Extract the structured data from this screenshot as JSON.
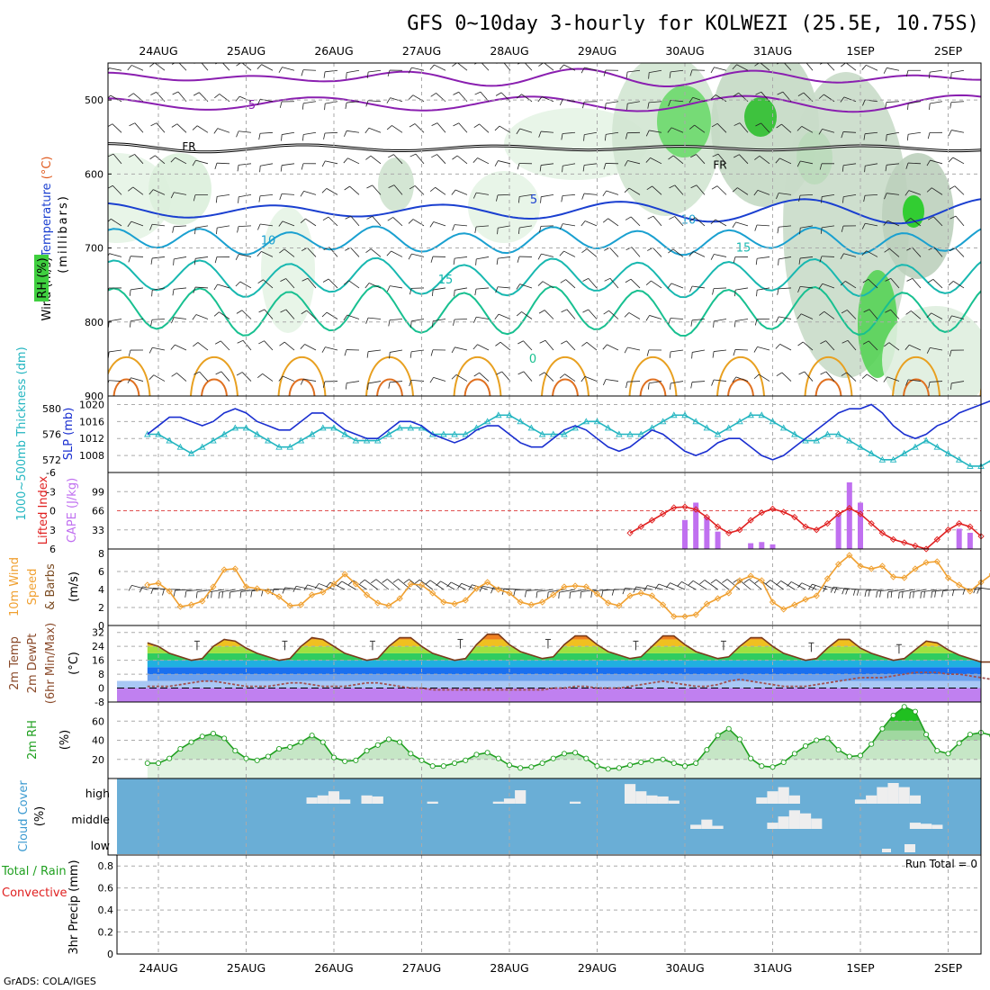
{
  "title": "GFS 0~10day 3-hourly for KOLWEZI (25.5E, 10.75S)",
  "credit": "GrADS: COLA/IGES",
  "dates": [
    "24AUG",
    "25AUG",
    "26AUG",
    "27AUG",
    "28AUG",
    "29AUG",
    "30AUG",
    "31AUG",
    "1SEP",
    "2SEP"
  ],
  "run_total_label": "Run Total = 0",
  "panels": {
    "upper_air": {
      "ylabel_parts": [
        {
          "text": "Wind (m/s)",
          "color": "#000000"
        },
        {
          "text": "Temperature",
          "color": "#1a3fd0"
        },
        {
          "text": " (°C)",
          "color": "#e05a1e"
        }
      ],
      "ylabel2": "(millibars)",
      "rh_label": "RH (%)",
      "y_ticks": [
        "500",
        "600",
        "700",
        "800",
        "900"
      ]
    },
    "thickness_slp": {
      "ylabel_thickness": "1000~500mb Thickness (dm)",
      "ylabel_slp": "SLP (mb)",
      "thickness_ticks": [
        "580",
        "576",
        "572"
      ],
      "slp_ticks": [
        "1020",
        "1016",
        "1012",
        "1008"
      ]
    },
    "cape": {
      "ylabel_li": "Lifted Index",
      "ylabel_cape": "CAPE (J/kg)",
      "li_ticks": [
        "-6",
        "-3",
        "0",
        "3",
        "6"
      ],
      "cape_ticks": [
        "99",
        "66",
        "33"
      ]
    },
    "wind10m": {
      "ylabel_a": "10m Wind",
      "ylabel_b": "Speed",
      "ylabel_c": "& Barbs",
      "ylabel_units": "(m/s)",
      "y_ticks": [
        "8",
        "6",
        "4",
        "2",
        "0"
      ]
    },
    "temp2m": {
      "ylabel_a": "2m Temp",
      "ylabel_b": "2m DewPt",
      "ylabel_c": "(6hr Min/Max)",
      "ylabel_units": "(°C)",
      "y_ticks": [
        "32",
        "24",
        "16",
        "8",
        "0",
        "-8"
      ]
    },
    "rh2m": {
      "ylabel": "2m RH",
      "ylabel_units": "(%)",
      "y_ticks": [
        "60",
        "40",
        "20"
      ]
    },
    "cloud": {
      "ylabel": "Cloud Cover",
      "ylabel_units": "(%)",
      "levels": [
        "high",
        "middle",
        "low"
      ]
    },
    "precip": {
      "ylabel_a": "Total / Rain",
      "ylabel_b": "Convective",
      "ylabel_c": "3hr Precip (mm)",
      "y_ticks": [
        "0.8",
        "0.6",
        "0.4",
        "0.2",
        "0"
      ]
    }
  },
  "colors": {
    "slp": "#1a2fd0",
    "thickness": "#22b5c0",
    "li": "#e02020",
    "cape": "#c070f0",
    "wind_speed": "#f0a030",
    "rh": "#20a020",
    "cloud_bg": "#6aaed6",
    "cloud_bar": "#eeeeee",
    "dewpt": "#a05050"
  },
  "chart_data": [
    {
      "type": "line",
      "name": "sea-level-pressure",
      "ylabel": "SLP (mb)",
      "ylim": [
        1004,
        1022
      ],
      "x_start": "24AUG",
      "x_step_hours": 3,
      "values": [
        1013,
        1015,
        1017,
        1017,
        1016,
        1015,
        1016,
        1018,
        1019,
        1018,
        1016,
        1015,
        1014,
        1014,
        1016,
        1018,
        1018,
        1016,
        1014,
        1013,
        1012,
        1012,
        1014,
        1016,
        1016,
        1015,
        1013,
        1012,
        1011,
        1012,
        1014,
        1015,
        1015,
        1013,
        1011,
        1010,
        1010,
        1012,
        1014,
        1015,
        1014,
        1012,
        1010,
        1009,
        1010,
        1012,
        1014,
        1013,
        1011,
        1009,
        1008,
        1009,
        1011,
        1012,
        1012,
        1010,
        1008,
        1007,
        1008,
        1010,
        1012,
        1014,
        1016,
        1018,
        1019,
        1019,
        1020,
        1018,
        1015,
        1013,
        1012,
        1013,
        1015,
        1016,
        1018,
        1019,
        1020,
        1021
      ]
    },
    {
      "type": "line",
      "name": "thickness-1000-500mb",
      "ylabel": "1000~500mb Thickness (dm)",
      "ylim": [
        570,
        582
      ],
      "x_start": "24AUG",
      "x_step_hours": 3,
      "values": [
        576,
        576,
        575,
        574,
        573,
        574,
        575,
        576,
        577,
        577,
        576,
        575,
        574,
        574,
        575,
        576,
        577,
        577,
        576,
        575,
        575,
        575,
        576,
        577,
        577,
        577,
        576,
        576,
        576,
        576,
        577,
        578,
        579,
        579,
        578,
        577,
        576,
        576,
        576,
        577,
        578,
        578,
        577,
        576,
        576,
        576,
        577,
        578,
        579,
        579,
        578,
        577,
        576,
        577,
        578,
        579,
        579,
        578,
        577,
        576,
        575,
        575,
        576,
        576,
        575,
        574,
        573,
        572,
        572,
        573,
        574,
        575,
        574,
        573,
        572,
        571,
        571,
        572
      ]
    },
    {
      "type": "bar",
      "name": "cape",
      "ylabel": "CAPE (J/kg)",
      "ylim": [
        0,
        132
      ],
      "x_start": "24AUG",
      "x_step_hours": 3,
      "values": [
        0,
        0,
        0,
        0,
        0,
        0,
        0,
        0,
        0,
        0,
        0,
        0,
        0,
        0,
        0,
        0,
        0,
        0,
        0,
        0,
        0,
        0,
        0,
        0,
        0,
        0,
        0,
        0,
        0,
        0,
        0,
        0,
        0,
        0,
        0,
        0,
        0,
        0,
        0,
        0,
        0,
        0,
        0,
        0,
        0,
        0,
        0,
        0,
        0,
        50,
        80,
        55,
        30,
        0,
        0,
        10,
        12,
        8,
        0,
        0,
        0,
        0,
        0,
        60,
        115,
        80,
        0,
        0,
        0,
        0,
        0,
        0,
        0,
        0,
        35,
        28,
        0,
        0
      ]
    },
    {
      "type": "line",
      "name": "lifted-index",
      "ylabel": "Lifted Index",
      "ylim": [
        6,
        -6
      ],
      "x_start": "24AUG",
      "x_step_hours": 3,
      "values": [
        null,
        null,
        null,
        null,
        null,
        null,
        null,
        null,
        null,
        null,
        null,
        null,
        null,
        null,
        null,
        null,
        null,
        null,
        null,
        null,
        null,
        null,
        null,
        null,
        null,
        null,
        null,
        null,
        null,
        null,
        null,
        null,
        null,
        null,
        null,
        null,
        null,
        null,
        null,
        null,
        null,
        null,
        null,
        null,
        3.5,
        2.5,
        1.5,
        0.5,
        -0.5,
        -0.6,
        -0.2,
        1.0,
        2.5,
        3.5,
        3.0,
        1.5,
        0.3,
        -0.3,
        0.2,
        1.0,
        2.5,
        3.0,
        2.0,
        0.5,
        -0.4,
        0.5,
        2.0,
        3.5,
        4.5,
        5.0,
        5.5,
        6.0,
        4.5,
        3.0,
        2.0,
        2.5,
        4.0,
        null
      ]
    },
    {
      "type": "line",
      "name": "wind-speed-10m",
      "ylabel": "10m Wind Speed (m/s)",
      "ylim": [
        0,
        8
      ],
      "x_start": "24AUG",
      "x_step_hours": 3,
      "values": [
        4.5,
        4.7,
        3.8,
        2.1,
        2.3,
        2.7,
        4.3,
        6.2,
        6.3,
        4.3,
        4.1,
        3.8,
        3.2,
        2.2,
        2.3,
        3.4,
        3.7,
        4.6,
        5.7,
        4.6,
        3.4,
        2.5,
        2.2,
        3.0,
        4.6,
        4.5,
        3.6,
        2.6,
        2.4,
        2.8,
        4.1,
        4.8,
        4.0,
        3.6,
        2.6,
        2.3,
        2.6,
        3.4,
        4.3,
        4.4,
        4.3,
        3.5,
        2.5,
        2.2,
        3.3,
        3.6,
        3.3,
        2.3,
        1.0,
        1.0,
        1.2,
        2.4,
        3.0,
        3.6,
        5.0,
        5.5,
        5.0,
        2.6,
        1.8,
        2.3,
        2.9,
        3.3,
        5.2,
        6.8,
        7.8,
        6.6,
        6.3,
        6.6,
        5.4,
        5.3,
        6.3,
        7.0,
        7.1,
        5.3,
        4.5,
        3.8,
        4.8,
        5.7
      ]
    },
    {
      "type": "line",
      "name": "relative-humidity-2m",
      "ylabel": "2m RH (%)",
      "ylim": [
        0,
        80
      ],
      "x_start": "24AUG",
      "x_step_hours": 3,
      "values": [
        16,
        16,
        21,
        31,
        38,
        44,
        47,
        42,
        29,
        21,
        19,
        23,
        31,
        33,
        38,
        45,
        38,
        22,
        18,
        19,
        29,
        35,
        41,
        38,
        26,
        19,
        13,
        13,
        16,
        19,
        25,
        27,
        21,
        14,
        11,
        12,
        16,
        21,
        26,
        27,
        21,
        13,
        10,
        11,
        14,
        17,
        19,
        20,
        16,
        13,
        16,
        30,
        45,
        52,
        41,
        21,
        13,
        12,
        17,
        26,
        34,
        40,
        42,
        30,
        23,
        24,
        36,
        52,
        66,
        75,
        70,
        46,
        29,
        26,
        37,
        46,
        48,
        45
      ]
    },
    {
      "type": "line",
      "name": "temperature-2m",
      "ylabel": "2m Temp (°C)",
      "ylim": [
        -8,
        36
      ],
      "x_start": "24AUG",
      "x_step_hours": 3,
      "values": [
        26,
        24,
        20,
        18,
        16,
        17,
        24,
        28,
        27,
        23,
        20,
        18,
        16,
        17,
        24,
        29,
        28,
        24,
        20,
        18,
        16,
        17,
        24,
        29,
        29,
        24,
        20,
        18,
        16,
        17,
        25,
        31,
        31,
        25,
        21,
        19,
        17,
        18,
        25,
        30,
        30,
        25,
        21,
        19,
        17,
        18,
        24,
        30,
        30,
        25,
        21,
        19,
        17,
        18,
        24,
        29,
        29,
        24,
        20,
        18,
        16,
        17,
        23,
        28,
        28,
        23,
        20,
        18,
        16,
        17,
        22,
        27,
        26,
        22,
        19,
        17,
        15,
        15
      ]
    },
    {
      "type": "line",
      "name": "dewpoint-2m",
      "ylabel": "2m DewPt (°C)",
      "ylim": [
        -8,
        36
      ],
      "x_start": "24AUG",
      "x_step_hours": 3,
      "values": [
        1,
        1,
        1,
        2,
        3,
        4,
        4,
        3,
        2,
        1,
        1,
        1,
        2,
        3,
        3,
        2,
        1,
        1,
        1,
        2,
        3,
        3,
        2,
        1,
        0,
        0,
        -1,
        -1,
        -1,
        -1,
        -1,
        -1,
        -1,
        -1,
        -1,
        -1,
        -1,
        0,
        0,
        1,
        1,
        0,
        0,
        0,
        1,
        2,
        3,
        4,
        3,
        2,
        1,
        1,
        2,
        4,
        5,
        4,
        3,
        2,
        1,
        1,
        1,
        2,
        3,
        4,
        5,
        6,
        6,
        6,
        7,
        8,
        9,
        9,
        9,
        8,
        8,
        7,
        6,
        5
      ]
    },
    {
      "type": "bar",
      "name": "cloud-cover-high",
      "ylabel": "Cloud Cover (%)",
      "ylim": [
        0,
        100
      ],
      "x_start": "24AUG",
      "x_step_hours": 3,
      "values": [
        0,
        0,
        0,
        0,
        0,
        0,
        0,
        0,
        0,
        0,
        0,
        0,
        0,
        0,
        0,
        30,
        40,
        60,
        20,
        0,
        40,
        35,
        0,
        0,
        0,
        0,
        10,
        0,
        0,
        0,
        0,
        0,
        10,
        25,
        65,
        0,
        0,
        0,
        0,
        10,
        0,
        0,
        0,
        0,
        95,
        60,
        40,
        35,
        15,
        0,
        0,
        0,
        0,
        0,
        0,
        0,
        30,
        60,
        80,
        40,
        0,
        0,
        0,
        0,
        0,
        20,
        40,
        80,
        100,
        80,
        40,
        0,
        0,
        0,
        0,
        0,
        0,
        0
      ]
    },
    {
      "type": "bar",
      "name": "cloud-cover-middle",
      "ylabel": "Cloud Cover (%)",
      "ylim": [
        0,
        100
      ],
      "x_start": "24AUG",
      "x_step_hours": 3,
      "values": [
        0,
        0,
        0,
        0,
        0,
        0,
        0,
        0,
        0,
        0,
        0,
        0,
        0,
        0,
        0,
        0,
        0,
        0,
        0,
        0,
        0,
        0,
        0,
        0,
        0,
        0,
        0,
        0,
        0,
        0,
        0,
        0,
        0,
        0,
        0,
        0,
        0,
        0,
        0,
        0,
        0,
        0,
        0,
        0,
        0,
        0,
        0,
        0,
        0,
        0,
        20,
        45,
        15,
        0,
        0,
        0,
        0,
        30,
        60,
        90,
        75,
        50,
        0,
        0,
        0,
        0,
        0,
        0,
        0,
        0,
        30,
        25,
        20,
        0,
        0,
        0,
        0,
        0
      ]
    }
  ]
}
